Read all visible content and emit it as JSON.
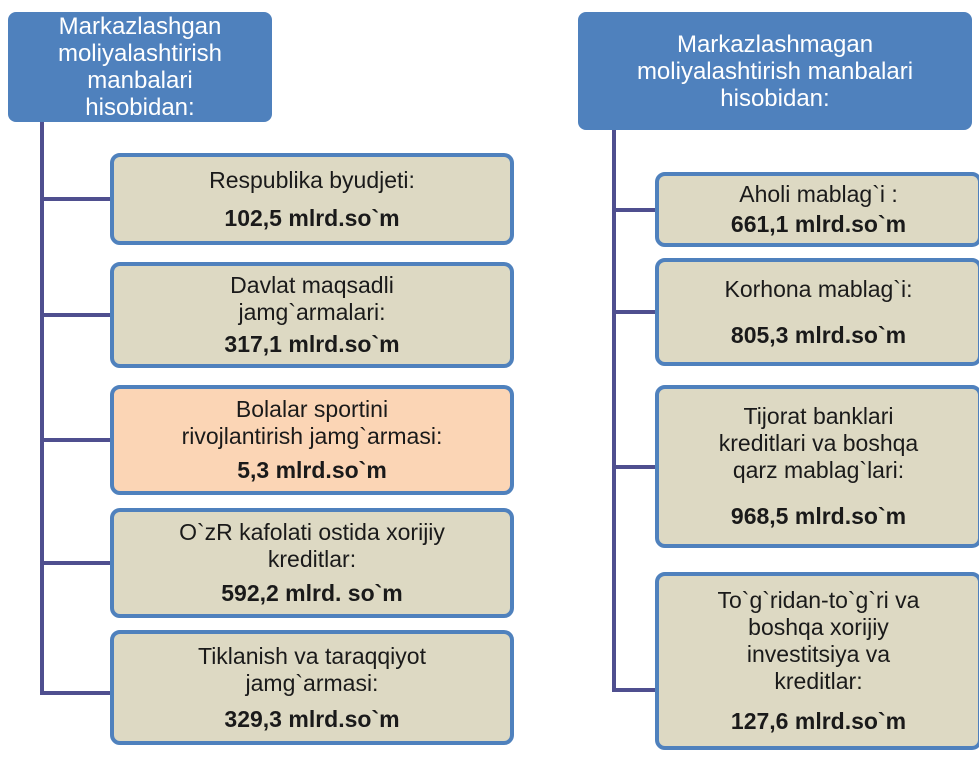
{
  "left": {
    "header": [
      "Markazlashgan",
      "moliyalashtirish manbalari",
      "hisobidan:"
    ],
    "items": [
      {
        "lines": [
          "Respublika byudjeti:"
        ],
        "value": "102,5 mlrd.so`m"
      },
      {
        "lines": [
          "Davlat maqsadli",
          "jamg`armalari:"
        ],
        "value": "317,1 mlrd.so`m"
      },
      {
        "lines": [
          "Bolalar sportini",
          "rivojlantirish jamg`armasi:"
        ],
        "value": "5,3 mlrd.so`m"
      },
      {
        "lines": [
          "O`zR kafolati ostida xorijiy",
          "kreditlar:"
        ],
        "value": "592,2 mlrd. so`m"
      },
      {
        "lines": [
          "Tiklanish va taraqqiyot",
          "jamg`armasi:"
        ],
        "value": "329,3 mlrd.so`m"
      }
    ]
  },
  "right": {
    "header": [
      "Markazlashmagan",
      "moliyalashtirish manbalari",
      "hisobidan:"
    ],
    "items": [
      {
        "lines": [
          "Aholi mablag`i :"
        ],
        "value": "661,1 mlrd.so`m"
      },
      {
        "lines": [
          "Korhona mablag`i:"
        ],
        "value": "805,3 mlrd.so`m"
      },
      {
        "lines": [
          "Tijorat banklari",
          "kreditlari va boshqa",
          "qarz mablag`lari:"
        ],
        "value": "968,5 mlrd.so`m"
      },
      {
        "lines": [
          "To`g`ridan-to`g`ri va",
          "boshqa xorijiy",
          "investitsiya va",
          "kreditlar:"
        ],
        "value": "127,6 mlrd.so`m"
      }
    ]
  }
}
